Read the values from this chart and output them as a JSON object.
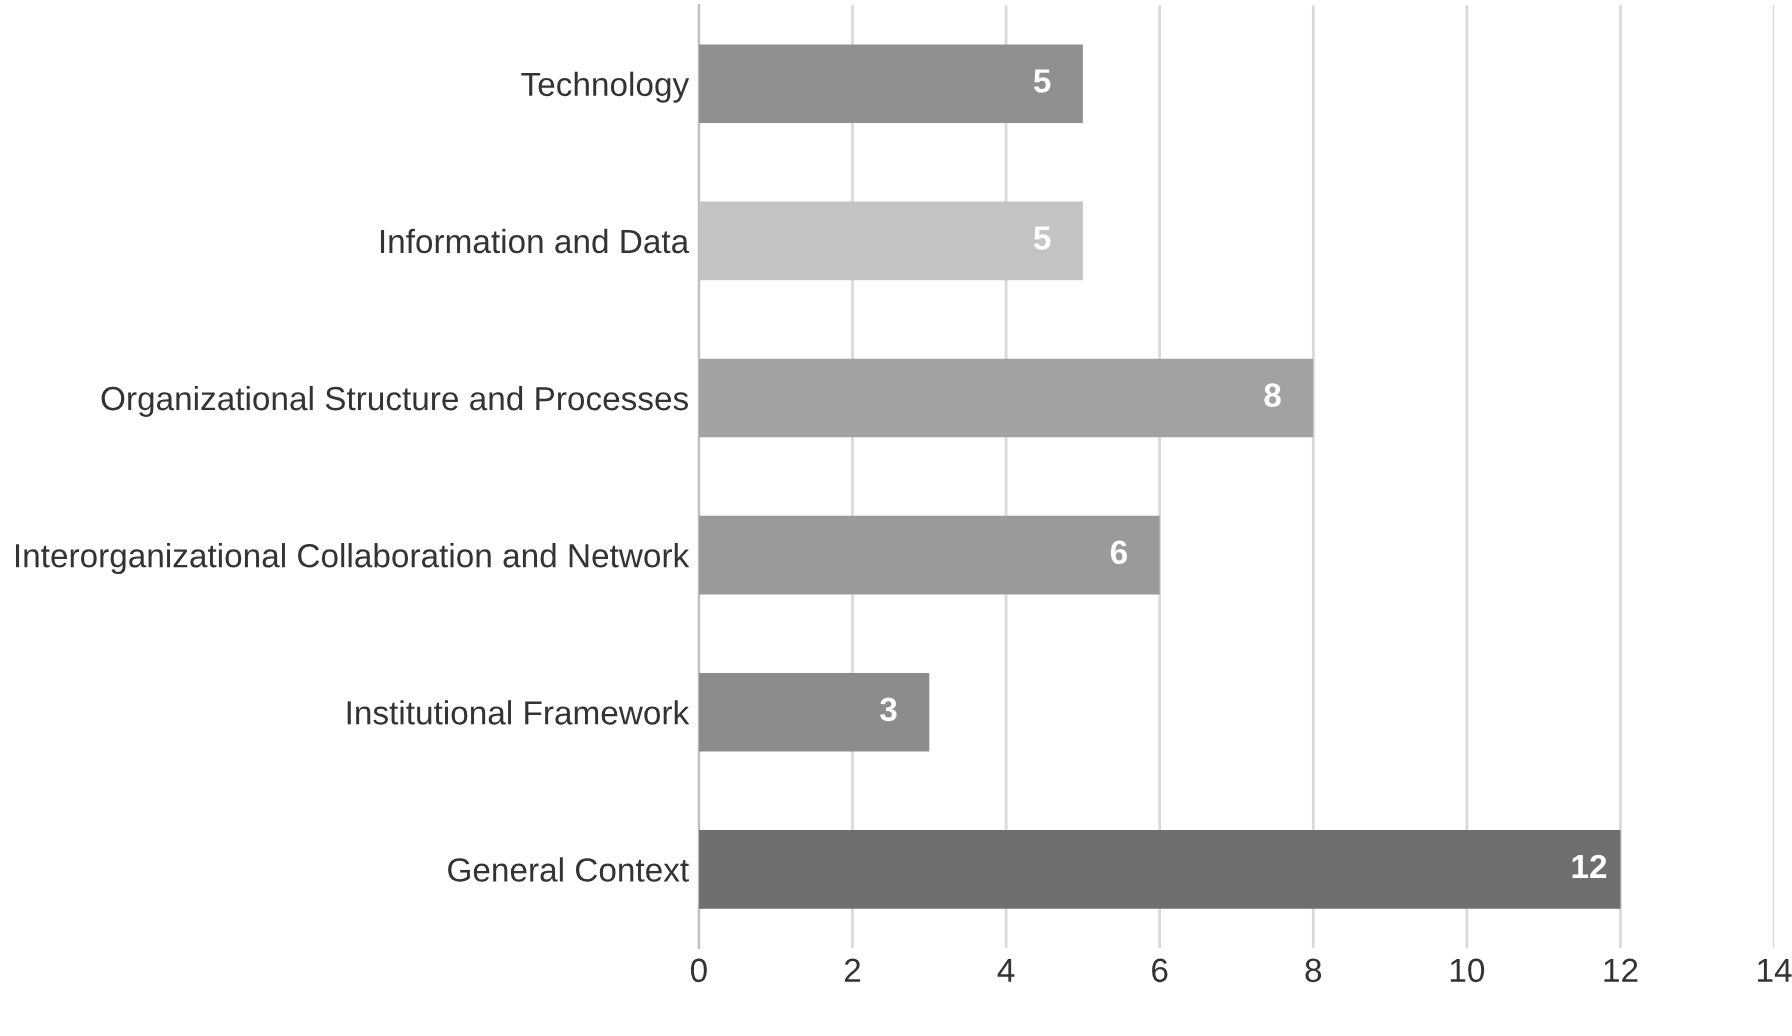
{
  "chart_data": {
    "type": "bar",
    "orientation": "horizontal",
    "categories": [
      "Technology",
      "Information and Data",
      "Organizational Structure and Processes",
      "Interorganizational Collaboration and Network",
      "Institutional Framework",
      "General Context"
    ],
    "values": [
      5,
      5,
      8,
      6,
      3,
      12
    ],
    "colors": [
      "#8f8f8f",
      "#c4c4c4",
      "#a2a2a2",
      "#9a9a9a",
      "#8c8c8c",
      "#6f6f6f"
    ],
    "xlim": [
      0,
      14
    ],
    "xticks": [
      0,
      2,
      4,
      6,
      8,
      10,
      12,
      14
    ],
    "grid": "x",
    "data_labels": true
  }
}
